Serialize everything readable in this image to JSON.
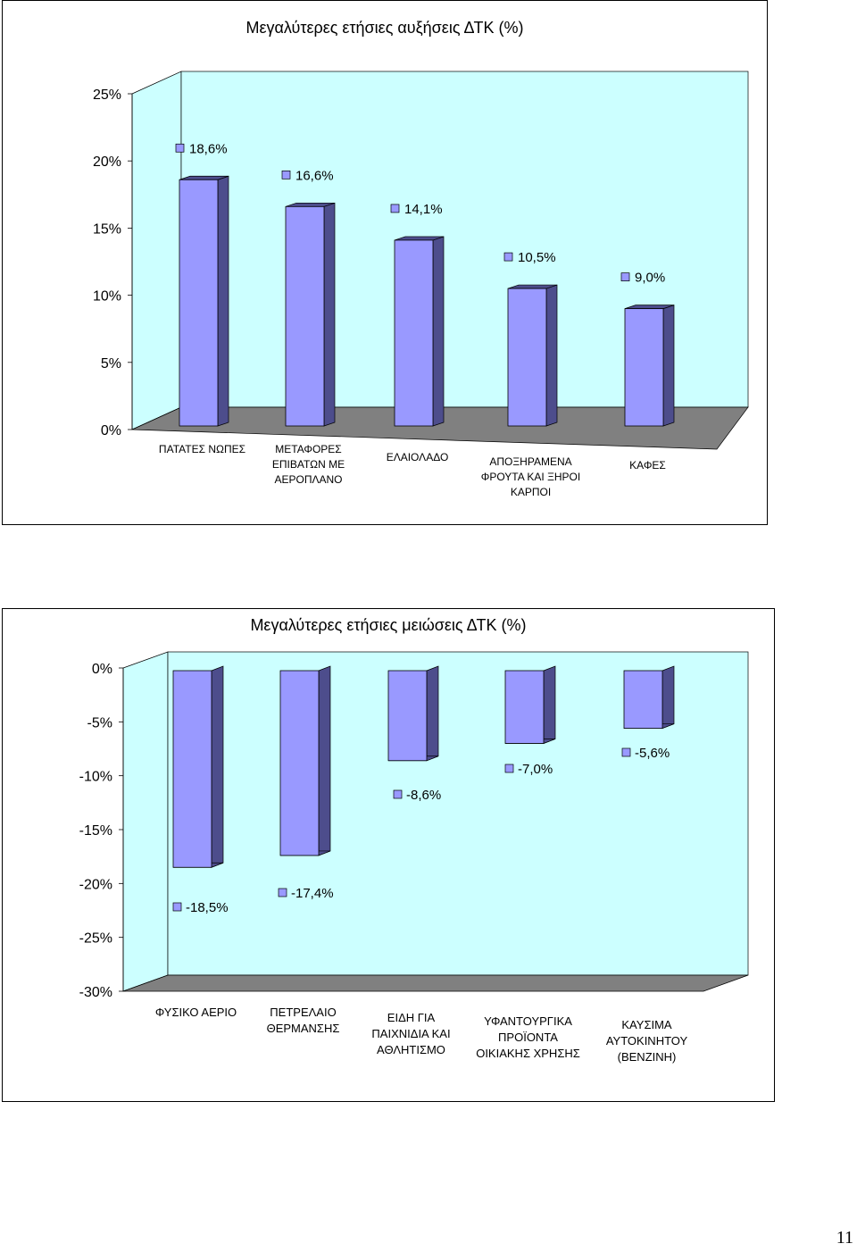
{
  "chart_data": [
    {
      "type": "bar",
      "title": "Μεγαλύτερες ετήσιες αυξήσεις ΔΤΚ (%)",
      "categories": [
        [
          "ΠΑΤΑΤΕΣ ΝΩΠΕΣ"
        ],
        [
          "ΜΕΤΑΦΟΡΕΣ",
          "ΕΠΙΒΑΤΩΝ ΜΕ",
          "ΑΕΡΟΠΛΑΝΟ"
        ],
        [
          "ΕΛΑΙΟΛΑΔΟ"
        ],
        [
          "ΑΠΟΞΗΡΑΜΕΝΑ",
          "ΦΡΟΥΤΑ ΚΑΙ ΞΗΡΟΙ",
          "ΚΑΡΠΟΙ"
        ],
        [
          "ΚΑΦΕΣ"
        ]
      ],
      "values": [
        18.6,
        16.6,
        14.1,
        10.5,
        9.0
      ],
      "data_labels": [
        "18,6%",
        "16,6%",
        "14,1%",
        "10,5%",
        "9,0%"
      ],
      "ylim": [
        0,
        25
      ],
      "yticks": [
        "25%",
        "20%",
        "15%",
        "10%",
        "5%",
        "0%"
      ],
      "grid": false,
      "legend": "none",
      "colors": {
        "bar_front": "#9999ff",
        "bar_side": "#4d4d8c",
        "wall": "#ccffff",
        "floor": "#808080"
      }
    },
    {
      "type": "bar",
      "title": "Μεγαλύτερες ετήσιες μειώσεις ΔΤΚ (%)",
      "categories": [
        [
          "ΦΥΣΙΚΟ ΑΕΡΙΟ"
        ],
        [
          "ΠΕΤΡΕΛΑΙΟ",
          "ΘΕΡΜΑΝΣΗΣ"
        ],
        [
          "ΕΙΔΗ ΓΙΑ",
          "ΠΑΙΧΝΙΔΙΑ ΚΑΙ",
          "ΑΘΛΗΤΙΣΜΟ"
        ],
        [
          "ΥΦΑΝΤΟΥΡΓΙΚΑ",
          "ΠΡΟΪΟΝΤΑ",
          "ΟΙΚΙΑΚΗΣ ΧΡΗΣΗΣ"
        ],
        [
          "ΚΑΥΣΙΜΑ",
          "ΑΥΤΟΚΙΝΗΤΟΥ",
          "(ΒΕΝΖΙΝΗ)"
        ]
      ],
      "values": [
        -18.5,
        -17.4,
        -8.6,
        -7.0,
        -5.6
      ],
      "data_labels": [
        "-18,5%",
        "-17,4%",
        "-8,6%",
        "-7,0%",
        "-5,6%"
      ],
      "ylim": [
        -30,
        0
      ],
      "yticks": [
        "0%",
        "-5%",
        "-10%",
        "-15%",
        "-20%",
        "-25%",
        "-30%"
      ],
      "grid": false,
      "legend": "none",
      "colors": {
        "bar_front": "#9999ff",
        "bar_side": "#4d4d8c",
        "wall": "#ccffff",
        "floor": "#808080"
      }
    }
  ],
  "page": {
    "number": "11"
  }
}
